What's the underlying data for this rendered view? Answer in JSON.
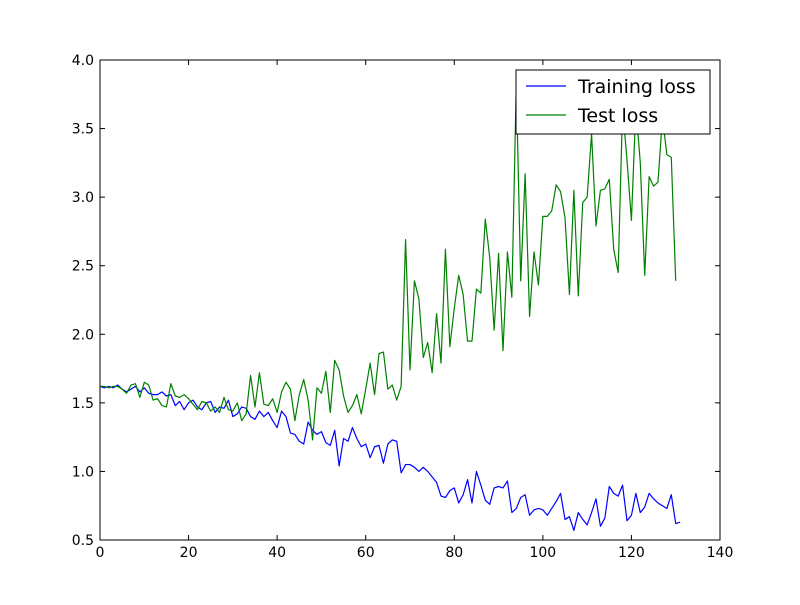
{
  "chart_data": {
    "type": "line",
    "title": "",
    "xlabel": "",
    "ylabel": "",
    "xlim": [
      0,
      140
    ],
    "ylim": [
      0.5,
      4.0
    ],
    "xticks": [
      0,
      20,
      40,
      60,
      80,
      100,
      120,
      140
    ],
    "yticks": [
      0.5,
      1.0,
      1.5,
      2.0,
      2.5,
      3.0,
      3.5,
      4.0
    ],
    "xtick_labels": [
      "0",
      "20",
      "40",
      "60",
      "80",
      "100",
      "120",
      "140"
    ],
    "ytick_labels": [
      "0.5",
      "1.0",
      "1.5",
      "2.0",
      "2.5",
      "3.0",
      "3.5",
      "4.0"
    ],
    "grid": false,
    "legend_position": "top-right",
    "series": [
      {
        "name": "Training loss",
        "color": "#0000ff",
        "values": [
          1.62,
          1.61,
          1.62,
          1.61,
          1.63,
          1.6,
          1.58,
          1.6,
          1.62,
          1.58,
          1.61,
          1.57,
          1.56,
          1.56,
          1.58,
          1.55,
          1.56,
          1.48,
          1.51,
          1.45,
          1.5,
          1.52,
          1.47,
          1.45,
          1.5,
          1.51,
          1.43,
          1.47,
          1.46,
          1.52,
          1.4,
          1.42,
          1.47,
          1.46,
          1.4,
          1.38,
          1.44,
          1.4,
          1.43,
          1.37,
          1.32,
          1.44,
          1.4,
          1.28,
          1.27,
          1.22,
          1.2,
          1.36,
          1.3,
          1.27,
          1.29,
          1.21,
          1.19,
          1.3,
          1.04,
          1.24,
          1.22,
          1.32,
          1.24,
          1.18,
          1.2,
          1.1,
          1.18,
          1.19,
          1.06,
          1.2,
          1.23,
          1.22,
          0.99,
          1.05,
          1.05,
          1.03,
          1.0,
          1.03,
          1.0,
          0.96,
          0.92,
          0.82,
          0.81,
          0.86,
          0.88,
          0.77,
          0.83,
          0.94,
          0.77,
          1.0,
          0.9,
          0.79,
          0.76,
          0.88,
          0.89,
          0.88,
          0.93,
          0.7,
          0.73,
          0.81,
          0.83,
          0.68,
          0.72,
          0.73,
          0.72,
          0.68,
          0.73,
          0.78,
          0.84,
          0.65,
          0.67,
          0.57,
          0.7,
          0.65,
          0.61,
          0.7,
          0.8,
          0.6,
          0.66,
          0.89,
          0.84,
          0.82,
          0.9,
          0.64,
          0.68,
          0.84,
          0.7,
          0.74,
          0.84,
          0.8,
          0.77,
          0.75,
          0.73,
          0.83,
          0.62,
          0.63
        ]
      },
      {
        "name": "Test loss",
        "color": "#008000",
        "values": [
          1.62,
          1.62,
          1.61,
          1.62,
          1.62,
          1.6,
          1.57,
          1.63,
          1.64,
          1.54,
          1.65,
          1.63,
          1.52,
          1.53,
          1.48,
          1.47,
          1.64,
          1.55,
          1.54,
          1.56,
          1.53,
          1.49,
          1.45,
          1.51,
          1.5,
          1.44,
          1.47,
          1.43,
          1.54,
          1.45,
          1.44,
          1.5,
          1.37,
          1.42,
          1.7,
          1.47,
          1.72,
          1.49,
          1.48,
          1.53,
          1.43,
          1.58,
          1.65,
          1.6,
          1.37,
          1.56,
          1.67,
          1.52,
          1.23,
          1.61,
          1.57,
          1.73,
          1.43,
          1.81,
          1.74,
          1.55,
          1.43,
          1.48,
          1.56,
          1.42,
          1.6,
          1.79,
          1.56,
          1.86,
          1.87,
          1.6,
          1.63,
          1.52,
          1.62,
          2.69,
          1.74,
          2.39,
          2.26,
          1.83,
          1.94,
          1.72,
          2.15,
          1.79,
          2.62,
          1.91,
          2.19,
          2.43,
          2.29,
          1.95,
          1.95,
          2.33,
          2.3,
          2.84,
          2.56,
          2.03,
          2.59,
          1.88,
          2.6,
          2.27,
          3.83,
          2.39,
          3.17,
          2.13,
          2.6,
          2.36,
          2.86,
          2.86,
          2.9,
          3.09,
          3.04,
          2.85,
          2.29,
          3.05,
          2.28,
          2.96,
          3.0,
          3.46,
          2.79,
          3.05,
          3.06,
          3.13,
          2.62,
          2.45,
          3.65,
          3.27,
          2.83,
          3.66,
          3.25,
          2.43,
          3.15,
          3.08,
          3.11,
          3.58,
          3.31,
          3.29,
          2.39
        ]
      }
    ]
  }
}
